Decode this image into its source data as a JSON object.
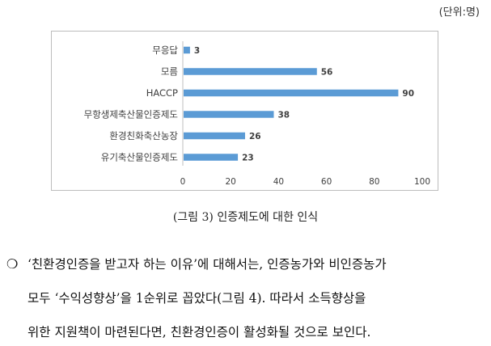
{
  "unit_label": "(단위:명)",
  "caption": "(그림 3) 인증제도에 대한 인식",
  "paragraph": {
    "bullet": "❍",
    "lines": [
      "‘친환경인증을 받고자 하는 이유’에 대해서는, 인증농가와 비인증농가",
      "모두 ‘수익성향상’을 1순위로 꼽았다(그림 4). 따라서 소득향상을",
      "위한 지원책이 마련된다면, 친환경인증이 활성화될 것으로 보인다."
    ]
  },
  "chart_data": {
    "type": "bar",
    "orientation": "horizontal",
    "categories": [
      "무응답",
      "모름",
      "HACCP",
      "무항생제축산물인증제도",
      "환경친화축산농장",
      "유기축산물인증제도"
    ],
    "values": [
      3,
      56,
      90,
      38,
      26,
      23
    ],
    "xlim": [
      0,
      100
    ],
    "xticks": [
      0,
      20,
      40,
      60,
      80,
      100
    ],
    "bar_color": "#5b9bd5",
    "data_labels": true,
    "grid": false
  }
}
